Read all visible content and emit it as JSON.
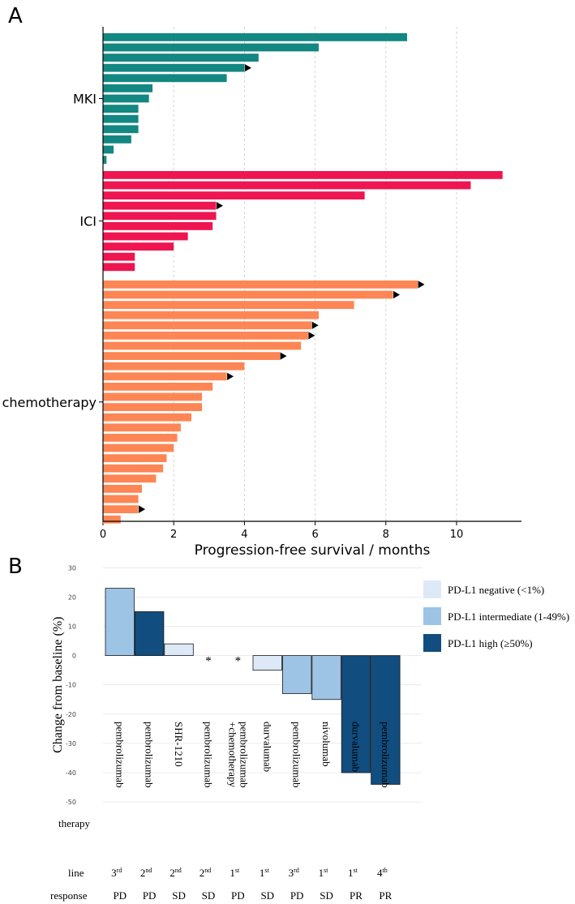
{
  "figure": {
    "panel_a_label": "A",
    "panel_b_label": "B"
  },
  "chart_data": [
    {
      "type": "bar",
      "orientation": "horizontal",
      "panel": "A",
      "title": "",
      "xlabel": "Progression-free survival / months",
      "ylabel": "",
      "xlim": [
        0,
        11.8
      ],
      "xticks": [
        0,
        2,
        4,
        6,
        8,
        10
      ],
      "grid": "vertical dashed",
      "arrow_meaning": "ongoing response",
      "groups": [
        {
          "name": "MKI",
          "color": "#138781",
          "values": [
            8.6,
            6.1,
            4.4,
            4.0,
            3.5,
            1.4,
            1.3,
            1.0,
            1.0,
            1.0,
            0.8,
            0.3,
            0.1
          ],
          "ongoing": [
            false,
            false,
            false,
            true,
            false,
            false,
            false,
            false,
            false,
            false,
            false,
            false,
            false
          ]
        },
        {
          "name": "ICI",
          "color": "#ef1550",
          "values": [
            11.3,
            10.4,
            7.4,
            3.2,
            3.2,
            3.1,
            2.4,
            2.0,
            0.9,
            0.9
          ],
          "ongoing": [
            false,
            false,
            false,
            true,
            false,
            false,
            false,
            false,
            false,
            false
          ]
        },
        {
          "name": "chemotherapy",
          "color": "#fe8654",
          "values": [
            8.9,
            8.2,
            7.1,
            6.1,
            5.9,
            5.8,
            5.6,
            5.0,
            4.0,
            3.5,
            3.1,
            2.8,
            2.8,
            2.5,
            2.2,
            2.1,
            2.0,
            1.8,
            1.7,
            1.5,
            1.1,
            1.0,
            1.0,
            0.5
          ],
          "ongoing": [
            true,
            true,
            false,
            false,
            true,
            true,
            false,
            true,
            false,
            true,
            false,
            false,
            false,
            false,
            false,
            false,
            false,
            false,
            false,
            false,
            false,
            false,
            true,
            false
          ]
        }
      ]
    },
    {
      "type": "bar",
      "panel": "B",
      "title": "",
      "xlabel": "",
      "ylabel": "Change from baseline (%)",
      "ylim": [
        -50,
        30
      ],
      "yticks": [
        30,
        20,
        10,
        0,
        -10,
        -20,
        -30,
        -40,
        -50
      ],
      "grid": "horizontal",
      "legend_position": "top-right",
      "legend": [
        {
          "key": "negative",
          "label": "PD-L1 negative (<1%)",
          "color": "#dde9f6"
        },
        {
          "key": "intermediate",
          "label": "PD-L1 intermediate (1-49%)",
          "color": "#9ec4e5"
        },
        {
          "key": "high",
          "label": "PD-L1 high (≥50%)",
          "color": "#114d7e"
        }
      ],
      "row_labels": {
        "therapy": "therapy",
        "line": "line",
        "response": "response"
      },
      "patients": [
        {
          "therapy": "pembrolizumab",
          "line_num": "3",
          "line_sup": "rd",
          "response": "PD",
          "value": 23,
          "pdl1": "intermediate",
          "marker": ""
        },
        {
          "therapy": "pembrolizumab",
          "line_num": "2",
          "line_sup": "nd",
          "response": "PD",
          "value": 15,
          "pdl1": "high",
          "marker": ""
        },
        {
          "therapy": "SHR-1210",
          "line_num": "2",
          "line_sup": "nd",
          "response": "SD",
          "value": 4,
          "pdl1": "negative",
          "marker": ""
        },
        {
          "therapy": "pembrolizumab",
          "line_num": "2",
          "line_sup": "nd",
          "response": "SD",
          "value": 0,
          "pdl1": "none",
          "marker": "*"
        },
        {
          "therapy": "pembrolizumab\n+chemotherapy",
          "line_num": "1",
          "line_sup": "st",
          "response": "PD",
          "value": 0,
          "pdl1": "none",
          "marker": "*"
        },
        {
          "therapy": "durvalumab",
          "line_num": "1",
          "line_sup": "st",
          "response": "SD",
          "value": -5,
          "pdl1": "negative",
          "marker": ""
        },
        {
          "therapy": "pembrolizumab",
          "line_num": "3",
          "line_sup": "rd",
          "response": "PD",
          "value": -13,
          "pdl1": "intermediate",
          "marker": ""
        },
        {
          "therapy": "nivolumab",
          "line_num": "1",
          "line_sup": "st",
          "response": "SD",
          "value": -15,
          "pdl1": "intermediate",
          "marker": ""
        },
        {
          "therapy": "durvalumab",
          "line_num": "1",
          "line_sup": "st",
          "response": "PR",
          "value": -40,
          "pdl1": "high",
          "marker": ""
        },
        {
          "therapy": "pembrolizumab",
          "line_num": "4",
          "line_sup": "th",
          "response": "PR",
          "value": -44,
          "pdl1": "high",
          "marker": ""
        }
      ]
    }
  ]
}
